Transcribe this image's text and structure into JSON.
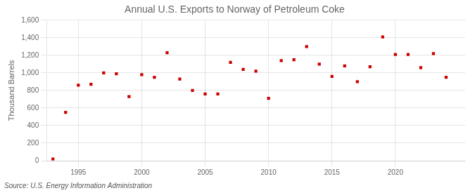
{
  "chart_data": {
    "type": "scatter",
    "title": "Annual U.S. Exports to Norway of Petroleum Coke",
    "y_label": "Thousand Barrels",
    "annotations": [
      "Source: U.S. Energy Information Administration"
    ],
    "x": [
      1993,
      1994,
      1995,
      1996,
      1997,
      1998,
      1999,
      2000,
      2001,
      2002,
      2003,
      2004,
      2005,
      2006,
      2007,
      2008,
      2009,
      2010,
      2011,
      2012,
      2013,
      2014,
      2015,
      2016,
      2017,
      2018,
      2019,
      2020,
      2021,
      2022,
      2023,
      2024
    ],
    "values": [
      20,
      550,
      860,
      870,
      1000,
      990,
      730,
      980,
      950,
      1230,
      930,
      800,
      760,
      760,
      1120,
      1040,
      1020,
      710,
      1140,
      1150,
      1300,
      1100,
      960,
      1080,
      900,
      1070,
      1410,
      1210,
      1210,
      1060,
      1220,
      950
    ],
    "color": "#cc0000",
    "marker": "square",
    "xlim": [
      1992.5,
      2025.5
    ],
    "xticks": [
      1995,
      2000,
      2005,
      2010,
      2015,
      2020
    ],
    "ylim": [
      0,
      1600
    ],
    "yticks": [
      0,
      200,
      400,
      600,
      800,
      {
        "value": 1000,
        "label": "1,000"
      },
      {
        "value": 1200,
        "label": "1,200"
      },
      {
        "value": 1400,
        "label": "1,400"
      },
      {
        "value": 1600,
        "label": "1,600"
      }
    ],
    "grid": true
  }
}
